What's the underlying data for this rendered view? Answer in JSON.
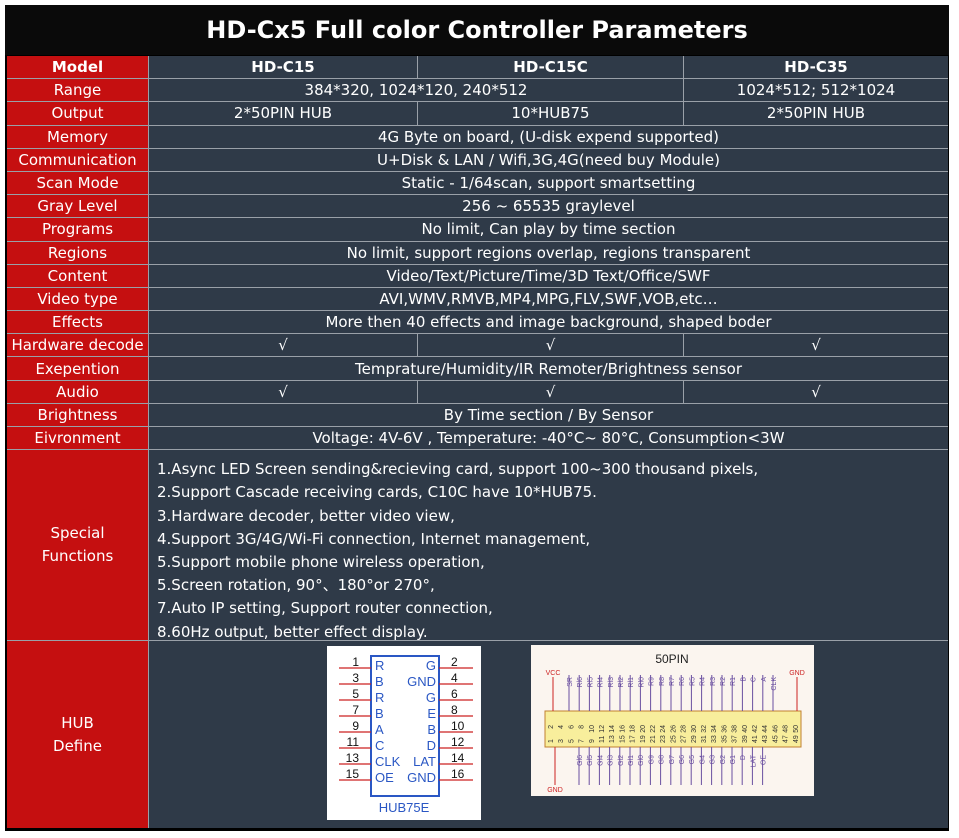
{
  "title": "HD-Cx5 Full color Controller Parameters",
  "header": {
    "label": "Model",
    "cols": [
      "HD-C15",
      "HD-C15C",
      "HD-C35"
    ]
  },
  "rows": [
    {
      "label": "Range",
      "cells": [
        "384*320, 1024*120, 240*512",
        "1024*512; 512*1024"
      ],
      "layout": [
        2,
        1
      ]
    },
    {
      "label": "Output",
      "cells": [
        "2*50PIN HUB",
        "10*HUB75",
        "2*50PIN HUB"
      ],
      "layout": [
        1,
        1,
        1
      ]
    },
    {
      "label": "Memory",
      "cells": [
        "4G Byte on board, (U-disk expend supported)"
      ],
      "layout": [
        3
      ]
    },
    {
      "label": "Communication",
      "cells": [
        "U+Disk & LAN / Wifi,3G,4G(need buy Module)"
      ],
      "layout": [
        3
      ]
    },
    {
      "label": "Scan Mode",
      "cells": [
        "Static - 1/64scan, support smartsetting"
      ],
      "layout": [
        3
      ]
    },
    {
      "label": "Gray Level",
      "cells": [
        "256 ~ 65535 graylevel"
      ],
      "layout": [
        3
      ]
    },
    {
      "label": "Programs",
      "cells": [
        "No limit, Can play by time section"
      ],
      "layout": [
        3
      ]
    },
    {
      "label": "Regions",
      "cells": [
        "No limit, support regions overlap, regions transparent"
      ],
      "layout": [
        3
      ]
    },
    {
      "label": "Content",
      "cells": [
        "Video/Text/Picture/Time/3D Text/Office/SWF"
      ],
      "layout": [
        3
      ]
    },
    {
      "label": "Video type",
      "cells": [
        "AVI,WMV,RMVB,MP4,MPG,FLV,SWF,VOB,etc…"
      ],
      "layout": [
        3
      ]
    },
    {
      "label": "Effects",
      "cells": [
        "More then 40 effects and image background, shaped boder"
      ],
      "layout": [
        3
      ]
    },
    {
      "label": "Hardware decode",
      "cells": [
        "√",
        "√",
        "√"
      ],
      "layout": [
        1,
        1,
        1
      ]
    },
    {
      "label": "Exepention",
      "cells": [
        "Temprature/Humidity/IR Remoter/Brightness sensor"
      ],
      "layout": [
        3
      ]
    },
    {
      "label": "Audio",
      "cells": [
        "√",
        "√",
        "√"
      ],
      "layout": [
        1,
        1,
        1
      ]
    },
    {
      "label": "Brightness",
      "cells": [
        "By Time section / By Sensor"
      ],
      "layout": [
        3
      ]
    },
    {
      "label": "Eivronment",
      "cells": [
        "Voltage: 4V-6V , Temperature: -40°C~ 80°C, Consumption<3W"
      ],
      "layout": [
        3
      ]
    }
  ],
  "special": {
    "label_lines": [
      "Special",
      "Functions"
    ],
    "items": [
      "1.Async LED Screen sending&recieving card, support 100~300 thousand pixels,",
      "2.Support Cascade receiving cards, C10C have 10*HUB75.",
      "3.Hardware decoder, better video view,",
      "4.Support 3G/4G/Wi-Fi connection, Internet management,",
      "5.Support mobile phone wireless operation,",
      "5.Screen rotation, 90°、180°or 270°,",
      "7.Auto IP setting, Support router connection,",
      "8.60Hz output, better effect display."
    ]
  },
  "hub": {
    "label_lines": [
      "HUB",
      "Define"
    ],
    "hub75e": {
      "caption": "HUB75E",
      "left_nums": [
        "1",
        "3",
        "5",
        "7",
        "9",
        "11",
        "13",
        "15"
      ],
      "right_nums": [
        "2",
        "4",
        "6",
        "8",
        "10",
        "12",
        "14",
        "16"
      ],
      "left_sigs": [
        "R",
        "B",
        "R",
        "B",
        "A",
        "C",
        "CLK",
        "OE"
      ],
      "right_sigs": [
        "G",
        "GND",
        "G",
        "E",
        "B",
        "D",
        "LAT",
        "GND"
      ]
    },
    "pin50": {
      "caption": "50PIN",
      "vcc": "VCC",
      "gnd_top": "GND",
      "gnd_bottom": "GND",
      "top_sigs": [
        "SR",
        "Rl6",
        "Rl5",
        "Rl4",
        "Rl3",
        "Rl2",
        "Rl1",
        "Rl0",
        "R9",
        "R8",
        "R7",
        "R6",
        "R5",
        "R4",
        "R3",
        "R2",
        "R1",
        "B",
        "C",
        "A",
        "CLK"
      ],
      "bottom_sigs": [
        "Gl6",
        "Gl5",
        "Gl4",
        "Gl3",
        "Gl2",
        "Gl1",
        "Gl0",
        "G9",
        "G8",
        "G7",
        "G6",
        "G5",
        "G4",
        "G3",
        "G2",
        "G1",
        "D",
        "LAT",
        "OE"
      ],
      "even_pins": [
        "2",
        "4",
        "6",
        "8",
        "10",
        "12",
        "14",
        "16",
        "18",
        "20",
        "22",
        "24",
        "26",
        "28",
        "30",
        "32",
        "34",
        "36",
        "38",
        "40",
        "42",
        "44",
        "46",
        "48",
        "50"
      ],
      "odd_pins": [
        "1",
        "3",
        "5",
        "7",
        "9",
        "11",
        "13",
        "15",
        "17",
        "19",
        "21",
        "23",
        "25",
        "27",
        "29",
        "31",
        "33",
        "35",
        "37",
        "39",
        "41",
        "43",
        "45",
        "47",
        "49"
      ]
    }
  }
}
